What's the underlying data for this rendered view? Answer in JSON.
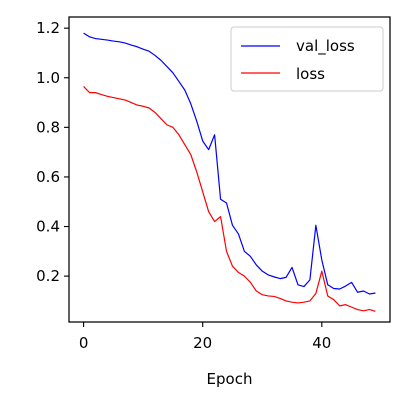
{
  "chart_data": {
    "type": "line",
    "title": "",
    "xlabel": "Epoch",
    "ylabel": "",
    "xlim": [
      -2.45,
      51.45
    ],
    "ylim": [
      0.015,
      1.245
    ],
    "xticks": [
      0,
      20,
      40
    ],
    "xtick_labels": [
      "0",
      "20",
      "40"
    ],
    "yticks": [
      0.2,
      0.4,
      0.6,
      0.8,
      1.0,
      1.2
    ],
    "ytick_labels": [
      "0.2",
      "0.4",
      "0.6",
      "0.8",
      "1.0",
      "1.2"
    ],
    "grid": false,
    "legend_position": "top-right",
    "x": [
      0,
      1,
      2,
      3,
      4,
      5,
      6,
      7,
      8,
      9,
      10,
      11,
      12,
      13,
      14,
      15,
      16,
      17,
      18,
      19,
      20,
      21,
      22,
      23,
      24,
      25,
      26,
      27,
      28,
      29,
      30,
      31,
      32,
      33,
      34,
      35,
      36,
      37,
      38,
      39,
      40,
      41,
      42,
      43,
      44,
      45,
      46,
      47,
      48,
      49
    ],
    "series": [
      {
        "name": "val_loss",
        "color": "#0000ff",
        "values": [
          1.18,
          1.165,
          1.158,
          1.155,
          1.152,
          1.148,
          1.145,
          1.14,
          1.132,
          1.125,
          1.115,
          1.107,
          1.09,
          1.07,
          1.045,
          1.02,
          0.985,
          0.95,
          0.895,
          0.825,
          0.745,
          0.71,
          0.77,
          0.51,
          0.495,
          0.405,
          0.37,
          0.3,
          0.28,
          0.245,
          0.22,
          0.205,
          0.197,
          0.19,
          0.195,
          0.235,
          0.165,
          0.158,
          0.185,
          0.405,
          0.265,
          0.165,
          0.15,
          0.148,
          0.16,
          0.175,
          0.135,
          0.14,
          0.128,
          0.132
        ]
      },
      {
        "name": "loss",
        "color": "#ff0000",
        "values": [
          0.965,
          0.94,
          0.94,
          0.932,
          0.925,
          0.92,
          0.915,
          0.91,
          0.9,
          0.89,
          0.885,
          0.878,
          0.86,
          0.835,
          0.81,
          0.8,
          0.77,
          0.73,
          0.69,
          0.62,
          0.54,
          0.46,
          0.42,
          0.44,
          0.3,
          0.24,
          0.215,
          0.2,
          0.175,
          0.14,
          0.125,
          0.12,
          0.118,
          0.11,
          0.1,
          0.095,
          0.092,
          0.095,
          0.1,
          0.13,
          0.22,
          0.12,
          0.105,
          0.08,
          0.085,
          0.075,
          0.065,
          0.06,
          0.065,
          0.058
        ]
      }
    ]
  }
}
